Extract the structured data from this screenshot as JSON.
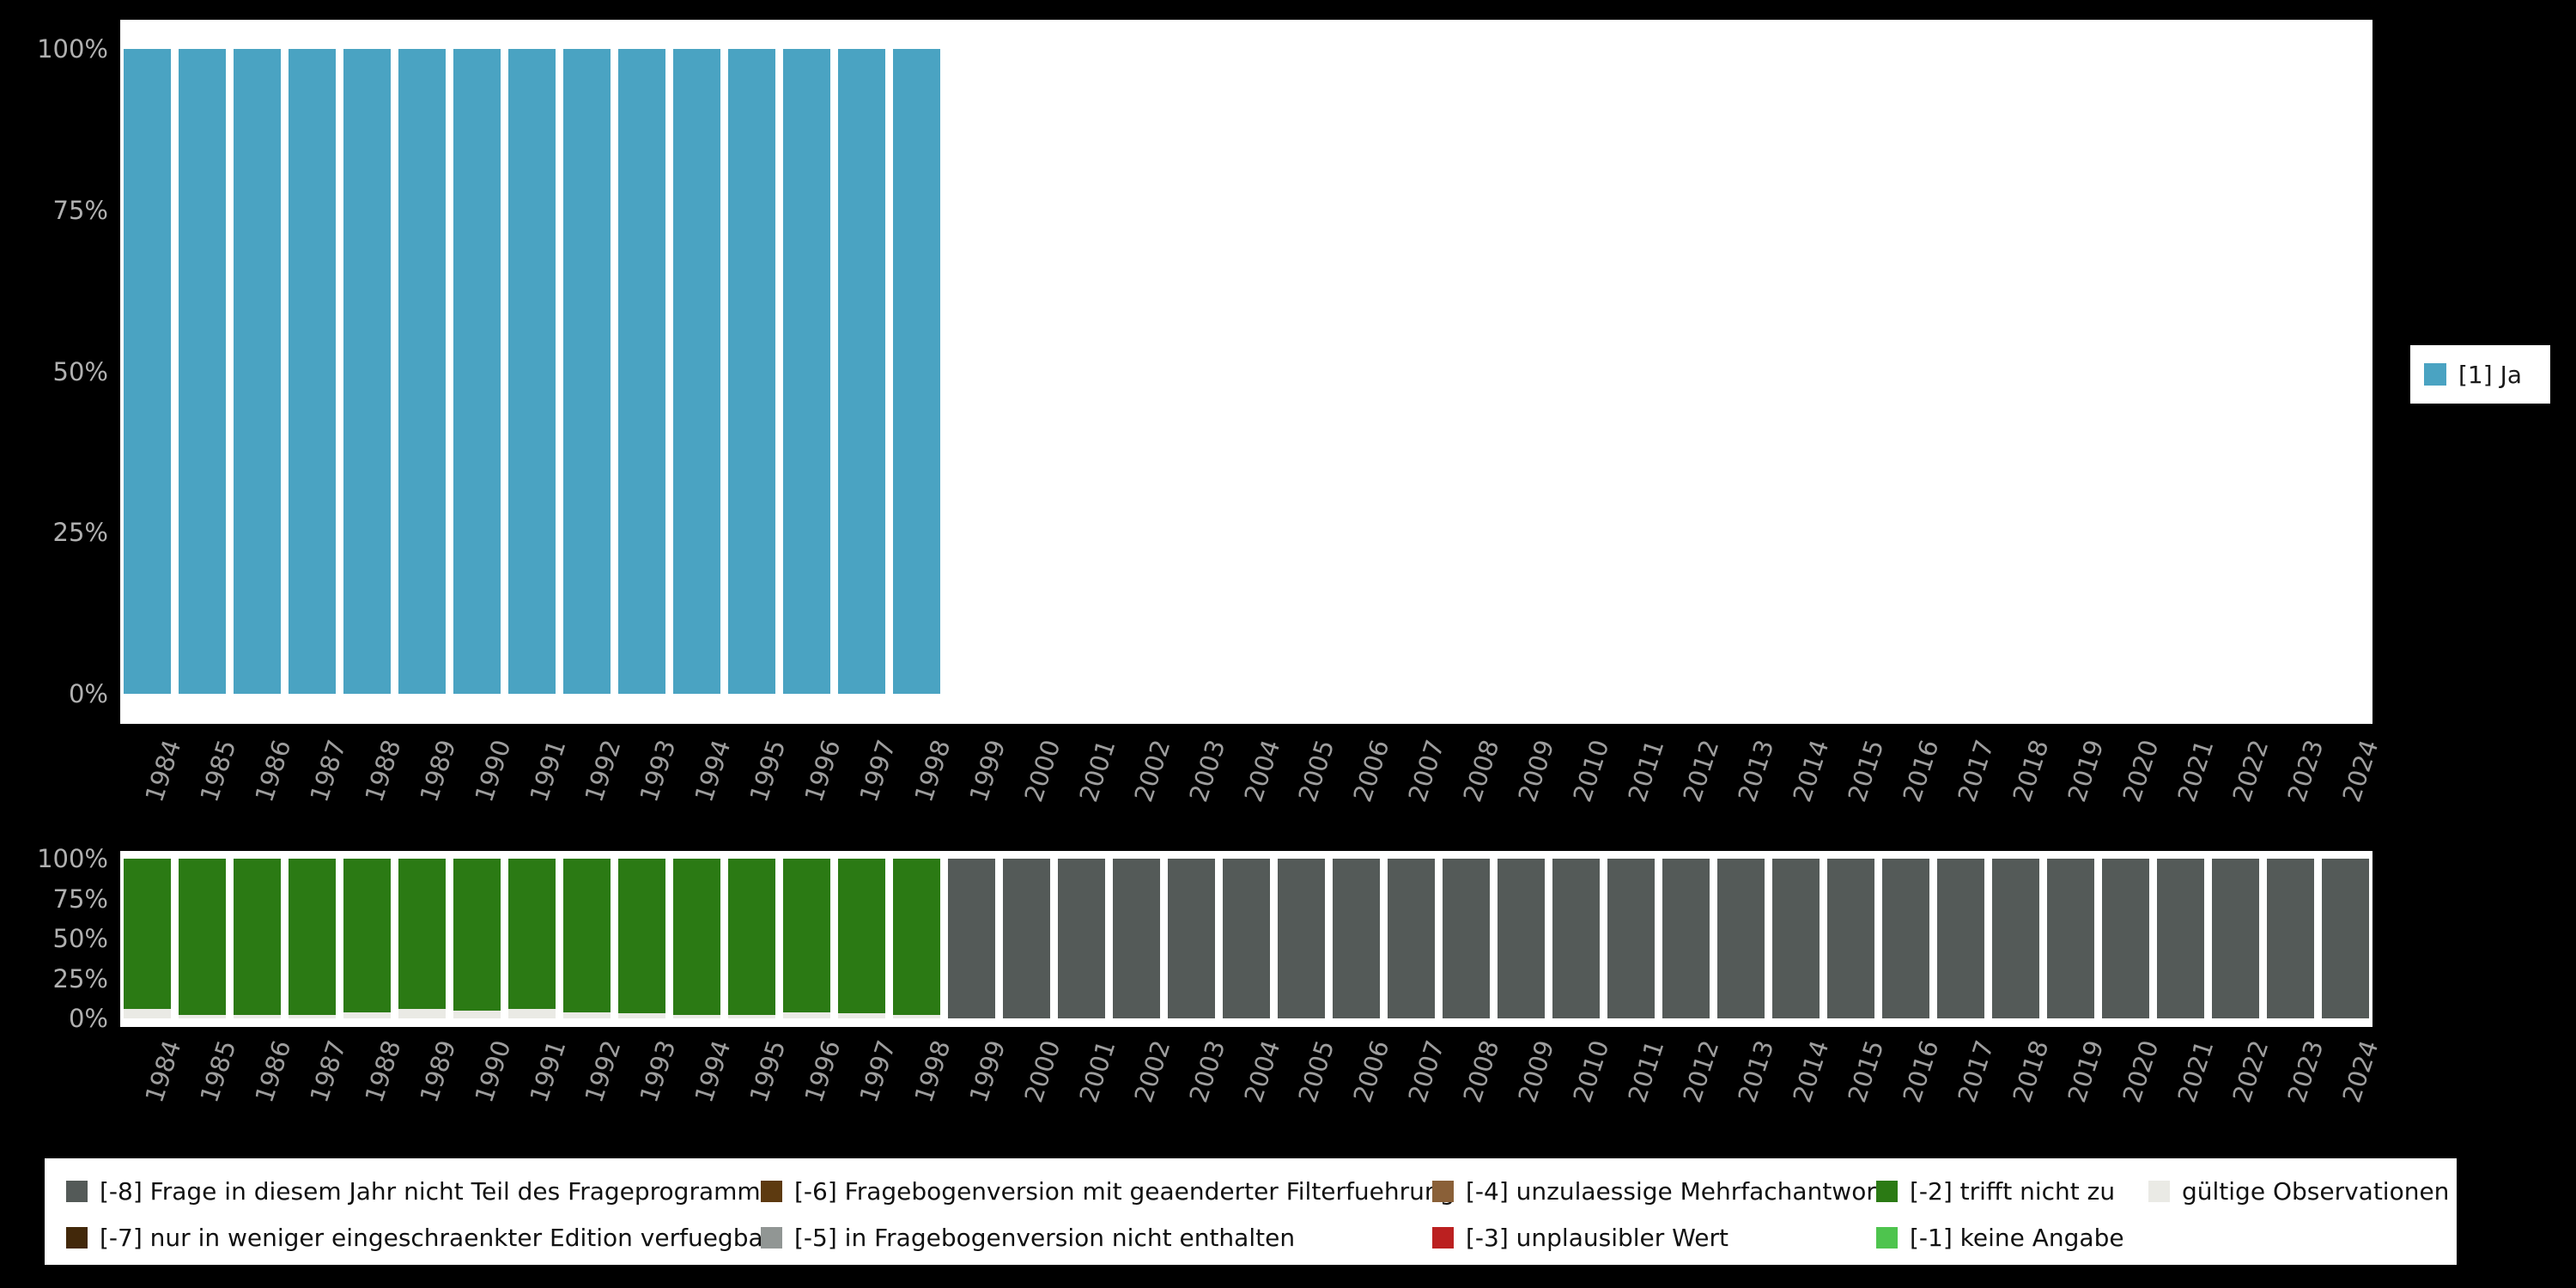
{
  "page": {
    "background": "#000000"
  },
  "legend_right": {
    "label": "[1] Ja",
    "color": "#4aa3c2"
  },
  "legend_bottom": {
    "items": [
      {
        "label": "[-8] Frage in diesem Jahr nicht Teil des Frageprogramms",
        "color": "#545a58",
        "row": 0,
        "col": 0
      },
      {
        "label": "[-7] nur in weniger eingeschraenkter Edition verfuegbar",
        "color": "#42280a",
        "row": 1,
        "col": 0
      },
      {
        "label": "[-6] Fragebogenversion mit geaenderter Filterfuehrung",
        "color": "#5d3a10",
        "row": 0,
        "col": 1
      },
      {
        "label": "[-5] in Fragebogenversion nicht enthalten",
        "color": "#919694",
        "row": 1,
        "col": 1
      },
      {
        "label": "[-4] unzulaessige Mehrfachantwort",
        "color": "#8a6038",
        "row": 0,
        "col": 2
      },
      {
        "label": "[-3] unplausibler Wert",
        "color": "#bb2020",
        "row": 1,
        "col": 2
      },
      {
        "label": "[-2] trifft nicht zu",
        "color": "#2b7a14",
        "row": 0,
        "col": 3
      },
      {
        "label": "[-1] keine Angabe",
        "color": "#4ec44e",
        "row": 1,
        "col": 3
      },
      {
        "label": "gültige Observationen",
        "color": "#eaeae5",
        "row": 0,
        "col": 4
      }
    ]
  },
  "chart_data": [
    {
      "type": "bar",
      "title": "",
      "xlabel": "",
      "ylabel": "",
      "ylim": [
        0,
        100
      ],
      "yticks": [
        "0%",
        "25%",
        "50%",
        "75%",
        "100%"
      ],
      "legend_position": "right",
      "x": [
        "1984",
        "1985",
        "1986",
        "1987",
        "1988",
        "1989",
        "1990",
        "1991",
        "1992",
        "1993",
        "1994",
        "1995",
        "1996",
        "1997",
        "1998",
        "1999",
        "2000",
        "2001",
        "2002",
        "2003",
        "2004",
        "2005",
        "2006",
        "2007",
        "2008",
        "2009",
        "2010",
        "2011",
        "2012",
        "2013",
        "2014",
        "2015",
        "2016",
        "2017",
        "2018",
        "2019",
        "2020",
        "2021",
        "2022",
        "2023",
        "2024"
      ],
      "series": [
        {
          "name": "[1] Ja",
          "color": "#4aa3c2",
          "values": [
            100,
            100,
            100,
            100,
            100,
            100,
            100,
            100,
            100,
            100,
            100,
            100,
            100,
            100,
            100,
            0,
            0,
            0,
            0,
            0,
            0,
            0,
            0,
            0,
            0,
            0,
            0,
            0,
            0,
            0,
            0,
            0,
            0,
            0,
            0,
            0,
            0,
            0,
            0,
            0,
            0
          ]
        }
      ]
    },
    {
      "type": "bar",
      "stacked": true,
      "title": "",
      "xlabel": "",
      "ylabel": "",
      "ylim": [
        0,
        100
      ],
      "yticks": [
        "0%",
        "25%",
        "50%",
        "75%",
        "100%"
      ],
      "legend_position": "bottom",
      "x": [
        "1984",
        "1985",
        "1986",
        "1987",
        "1988",
        "1989",
        "1990",
        "1991",
        "1992",
        "1993",
        "1994",
        "1995",
        "1996",
        "1997",
        "1998",
        "1999",
        "2000",
        "2001",
        "2002",
        "2003",
        "2004",
        "2005",
        "2006",
        "2007",
        "2008",
        "2009",
        "2010",
        "2011",
        "2012",
        "2013",
        "2014",
        "2015",
        "2016",
        "2017",
        "2018",
        "2019",
        "2020",
        "2021",
        "2022",
        "2023",
        "2024"
      ],
      "series": [
        {
          "name": "gültige Observationen",
          "color": "#eaeae5",
          "values": [
            6,
            2,
            2,
            2,
            4,
            6,
            5,
            6,
            4,
            3,
            2,
            2,
            4,
            3,
            2,
            0,
            0,
            0,
            0,
            0,
            0,
            0,
            0,
            0,
            0,
            0,
            0,
            0,
            0,
            0,
            0,
            0,
            0,
            0,
            0,
            0,
            0,
            0,
            0,
            0,
            0
          ]
        },
        {
          "name": "[-2] trifft nicht zu",
          "color": "#2b7a14",
          "values": [
            94,
            98,
            98,
            98,
            96,
            94,
            95,
            94,
            96,
            97,
            98,
            98,
            96,
            97,
            98,
            0,
            0,
            0,
            0,
            0,
            0,
            0,
            0,
            0,
            0,
            0,
            0,
            0,
            0,
            0,
            0,
            0,
            0,
            0,
            0,
            0,
            0,
            0,
            0,
            0,
            0
          ]
        },
        {
          "name": "[-8] Frage in diesem Jahr nicht Teil des Frageprogramms",
          "color": "#545a58",
          "values": [
            0,
            0,
            0,
            0,
            0,
            0,
            0,
            0,
            0,
            0,
            0,
            0,
            0,
            0,
            0,
            100,
            100,
            100,
            100,
            100,
            100,
            100,
            100,
            100,
            100,
            100,
            100,
            100,
            100,
            100,
            100,
            100,
            100,
            100,
            100,
            100,
            100,
            100,
            100,
            100,
            100
          ]
        }
      ]
    }
  ]
}
